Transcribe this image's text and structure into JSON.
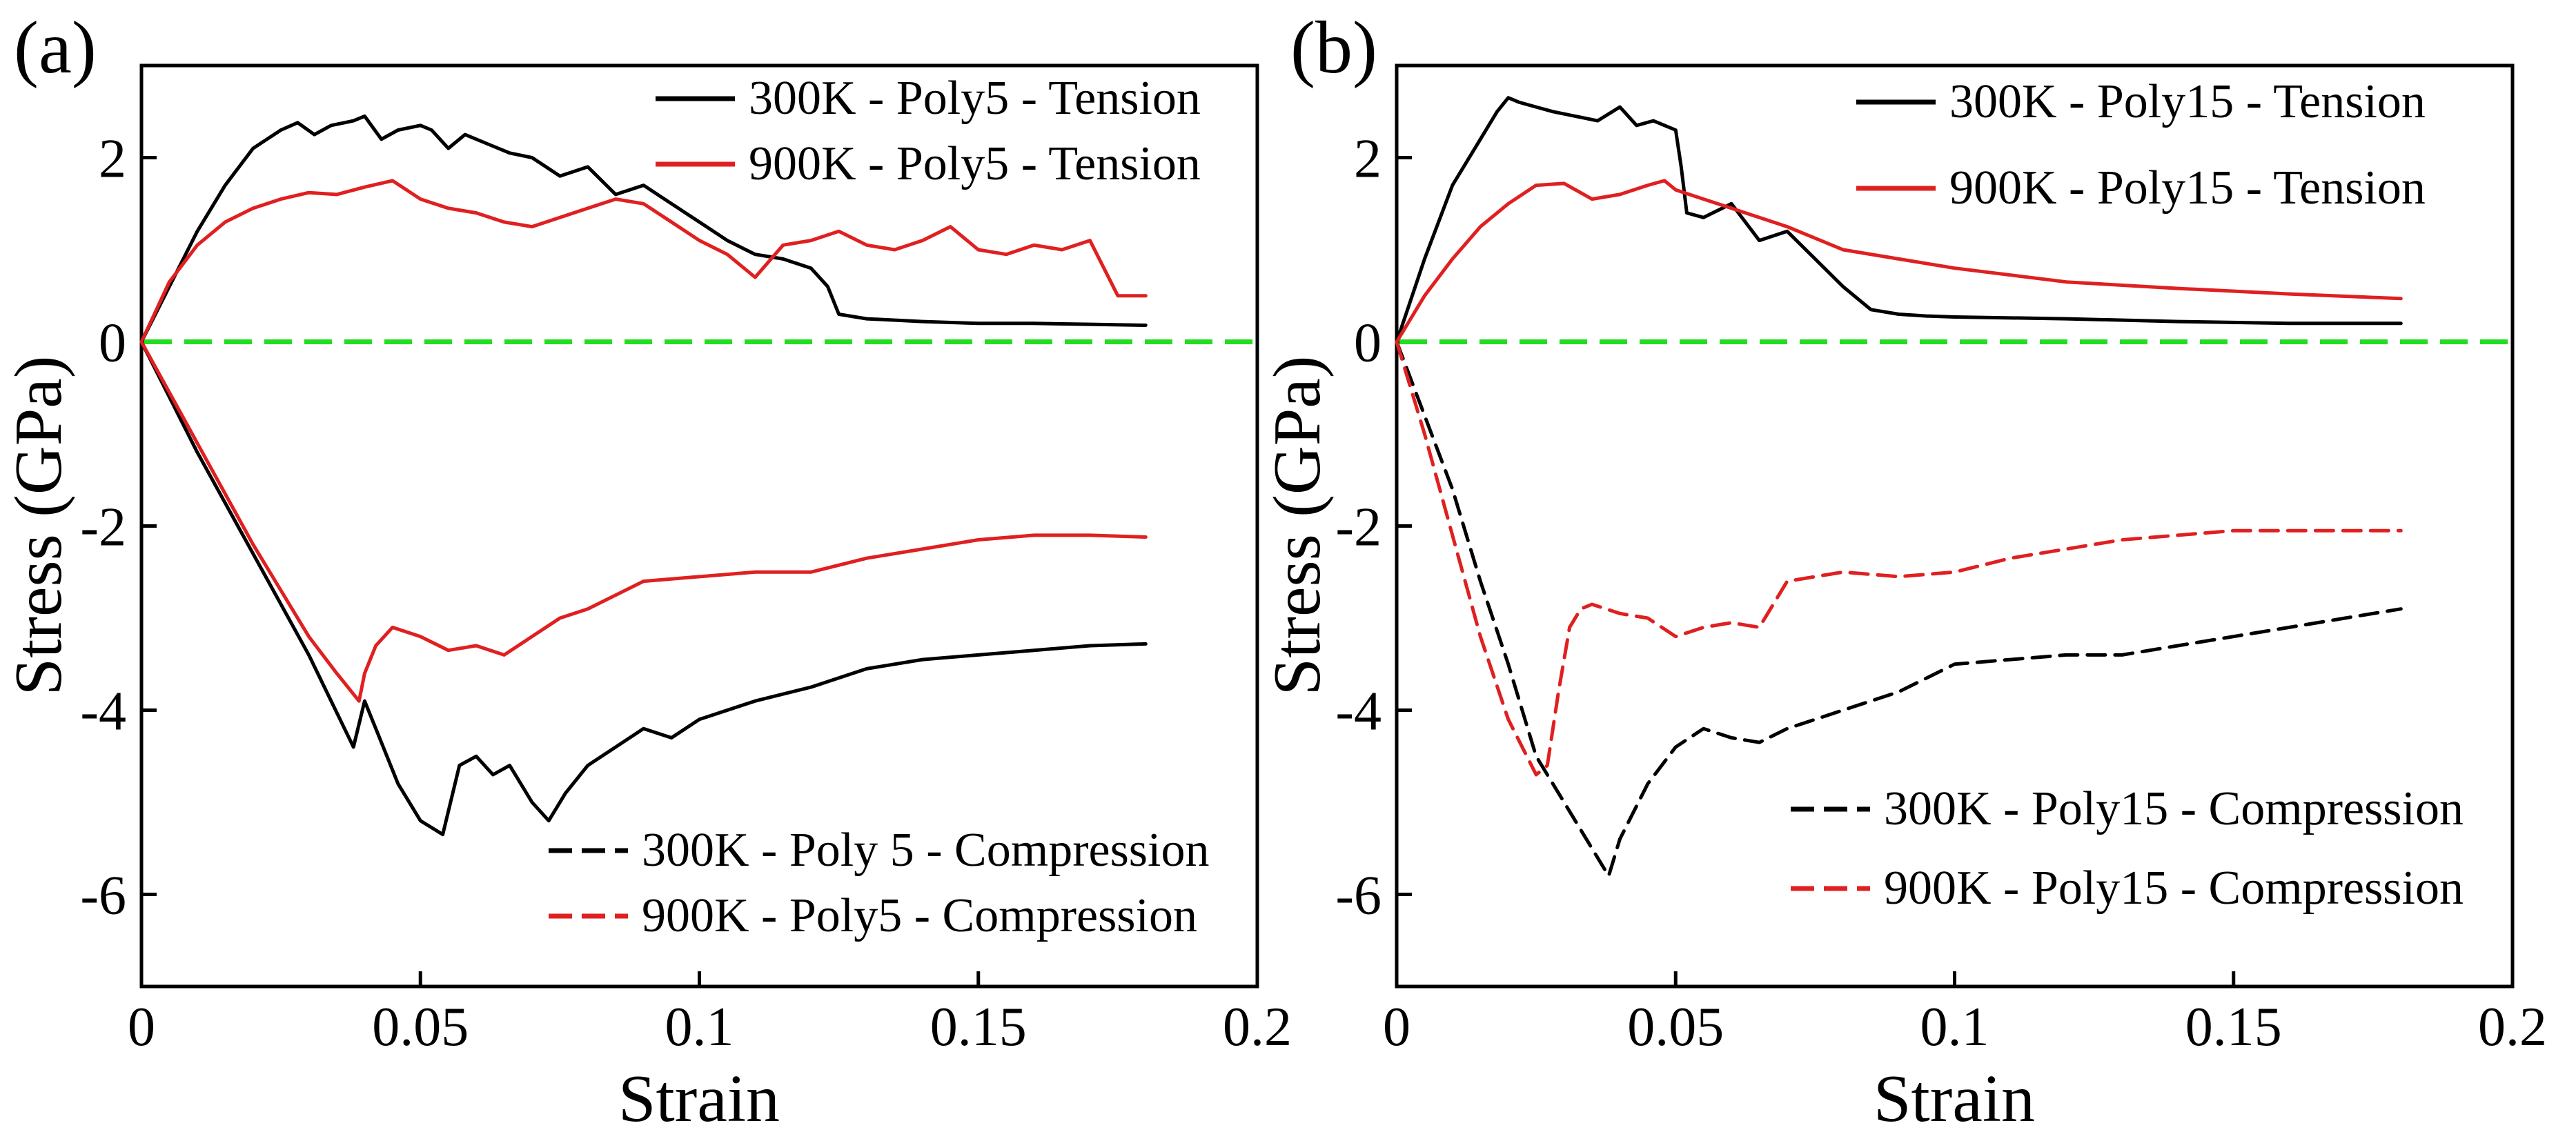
{
  "figure_title": "",
  "chart_data": [
    {
      "panel": "(a)",
      "type": "line",
      "title": "",
      "xlabel": "Strain",
      "ylabel": "Stress (GPa)",
      "xlim": [
        0,
        0.2
      ],
      "ylim": [
        -7,
        3
      ],
      "xticks": [
        0,
        0.05,
        0.1,
        0.15,
        0.2
      ],
      "xtick_labels": [
        "0",
        "0.05",
        "0.1",
        "0.15",
        "0.2"
      ],
      "yticks": [
        2,
        0,
        -2,
        -4,
        -6
      ],
      "ytick_labels": [
        "2",
        "0",
        "-2",
        "-4",
        "-6"
      ],
      "grid": false,
      "reference_line": {
        "y": 0,
        "style": "dashed",
        "color": "#22dd22"
      },
      "legends": [
        {
          "placement": "top-right",
          "items": [
            0,
            1
          ]
        },
        {
          "placement": "bottom-right",
          "items": [
            2,
            3
          ]
        }
      ],
      "series": [
        {
          "name": "300K - Poly5 - Tension",
          "color": "#000000",
          "style": "solid",
          "x": [
            0,
            0.005,
            0.01,
            0.015,
            0.02,
            0.025,
            0.028,
            0.031,
            0.034,
            0.038,
            0.04,
            0.043,
            0.046,
            0.05,
            0.052,
            0.055,
            0.058,
            0.062,
            0.066,
            0.07,
            0.075,
            0.08,
            0.085,
            0.09,
            0.095,
            0.1,
            0.105,
            0.11,
            0.115,
            0.12,
            0.123,
            0.125,
            0.13,
            0.14,
            0.15,
            0.16,
            0.17,
            0.18
          ],
          "y": [
            0,
            0.6,
            1.2,
            1.7,
            2.1,
            2.3,
            2.38,
            2.25,
            2.35,
            2.4,
            2.45,
            2.2,
            2.3,
            2.35,
            2.3,
            2.1,
            2.25,
            2.15,
            2.05,
            2.0,
            1.8,
            1.9,
            1.6,
            1.7,
            1.5,
            1.3,
            1.1,
            0.95,
            0.9,
            0.8,
            0.6,
            0.3,
            0.25,
            0.22,
            0.2,
            0.2,
            0.19,
            0.18
          ]
        },
        {
          "name": "900K - Poly5 - Tension",
          "color": "#e02020",
          "style": "solid",
          "x": [
            0,
            0.005,
            0.01,
            0.015,
            0.02,
            0.025,
            0.03,
            0.035,
            0.04,
            0.045,
            0.05,
            0.055,
            0.06,
            0.065,
            0.07,
            0.075,
            0.08,
            0.085,
            0.09,
            0.095,
            0.1,
            0.105,
            0.11,
            0.115,
            0.12,
            0.125,
            0.13,
            0.135,
            0.14,
            0.145,
            0.15,
            0.155,
            0.16,
            0.165,
            0.17,
            0.175,
            0.18
          ],
          "y": [
            0,
            0.65,
            1.05,
            1.3,
            1.45,
            1.55,
            1.62,
            1.6,
            1.68,
            1.75,
            1.55,
            1.45,
            1.4,
            1.3,
            1.25,
            1.35,
            1.45,
            1.55,
            1.5,
            1.3,
            1.1,
            0.95,
            0.7,
            1.05,
            1.1,
            1.2,
            1.05,
            1.0,
            1.1,
            1.25,
            1.0,
            0.95,
            1.05,
            1.0,
            1.1,
            0.5,
            0.5
          ]
        },
        {
          "name": "300K - Poly 5 - Compression",
          "color": "#000000",
          "style": "solid",
          "x": [
            0,
            0.01,
            0.02,
            0.03,
            0.038,
            0.04,
            0.042,
            0.046,
            0.05,
            0.054,
            0.057,
            0.06,
            0.063,
            0.066,
            0.07,
            0.073,
            0.076,
            0.08,
            0.085,
            0.09,
            0.095,
            0.1,
            0.11,
            0.12,
            0.13,
            0.14,
            0.15,
            0.16,
            0.17,
            0.18
          ],
          "y": [
            0,
            -1.2,
            -2.3,
            -3.4,
            -4.4,
            -3.9,
            -4.2,
            -4.8,
            -5.2,
            -5.35,
            -4.6,
            -4.5,
            -4.7,
            -4.6,
            -5.0,
            -5.2,
            -4.9,
            -4.6,
            -4.4,
            -4.2,
            -4.3,
            -4.1,
            -3.9,
            -3.75,
            -3.55,
            -3.45,
            -3.4,
            -3.35,
            -3.3,
            -3.28
          ]
        },
        {
          "name": "900K - Poly5 - Compression",
          "color": "#e02020",
          "style": "solid",
          "x": [
            0,
            0.01,
            0.02,
            0.03,
            0.035,
            0.039,
            0.04,
            0.042,
            0.045,
            0.05,
            0.055,
            0.06,
            0.065,
            0.07,
            0.075,
            0.08,
            0.09,
            0.1,
            0.11,
            0.12,
            0.13,
            0.14,
            0.15,
            0.16,
            0.17,
            0.18
          ],
          "y": [
            0,
            -1.1,
            -2.2,
            -3.2,
            -3.6,
            -3.9,
            -3.6,
            -3.3,
            -3.1,
            -3.2,
            -3.35,
            -3.3,
            -3.4,
            -3.2,
            -3.0,
            -2.9,
            -2.6,
            -2.55,
            -2.5,
            -2.5,
            -2.35,
            -2.25,
            -2.15,
            -2.1,
            -2.1,
            -2.12
          ]
        }
      ]
    },
    {
      "panel": "(b)",
      "type": "line",
      "title": "",
      "xlabel": "Strain",
      "ylabel": "Stress (GPa)",
      "xlim": [
        0,
        0.2
      ],
      "ylim": [
        -7,
        3
      ],
      "xticks": [
        0,
        0.05,
        0.1,
        0.15,
        0.2
      ],
      "xtick_labels": [
        "0",
        "0.05",
        "0.1",
        "0.15",
        "0.2"
      ],
      "yticks": [
        2,
        0,
        -2,
        -4,
        -6
      ],
      "ytick_labels": [
        "2",
        "0",
        "-2",
        "-4",
        "-6"
      ],
      "grid": false,
      "reference_line": {
        "y": 0,
        "style": "dashed",
        "color": "#22dd22"
      },
      "legends": [
        {
          "placement": "top-right",
          "items": [
            0,
            1
          ]
        },
        {
          "placement": "bottom-right",
          "items": [
            2,
            3
          ]
        }
      ],
      "series": [
        {
          "name": "300K - Poly15 - Tension",
          "color": "#000000",
          "style": "solid",
          "x": [
            0,
            0.005,
            0.01,
            0.015,
            0.018,
            0.02,
            0.022,
            0.025,
            0.028,
            0.032,
            0.036,
            0.04,
            0.043,
            0.046,
            0.05,
            0.051,
            0.052,
            0.055,
            0.06,
            0.065,
            0.07,
            0.075,
            0.08,
            0.085,
            0.09,
            0.095,
            0.1,
            0.12,
            0.14,
            0.16,
            0.18
          ],
          "y": [
            0,
            0.9,
            1.7,
            2.2,
            2.5,
            2.65,
            2.6,
            2.55,
            2.5,
            2.45,
            2.4,
            2.55,
            2.35,
            2.4,
            2.3,
            1.9,
            1.4,
            1.35,
            1.5,
            1.1,
            1.2,
            0.9,
            0.6,
            0.35,
            0.3,
            0.28,
            0.27,
            0.25,
            0.22,
            0.2,
            0.2
          ]
        },
        {
          "name": "900K - Poly15 - Tension",
          "color": "#e02020",
          "style": "solid",
          "x": [
            0,
            0.005,
            0.01,
            0.015,
            0.02,
            0.025,
            0.03,
            0.035,
            0.04,
            0.045,
            0.048,
            0.05,
            0.055,
            0.06,
            0.065,
            0.07,
            0.08,
            0.09,
            0.1,
            0.12,
            0.14,
            0.16,
            0.18
          ],
          "y": [
            0,
            0.5,
            0.9,
            1.25,
            1.5,
            1.7,
            1.72,
            1.55,
            1.6,
            1.7,
            1.75,
            1.65,
            1.55,
            1.45,
            1.35,
            1.25,
            1.0,
            0.9,
            0.8,
            0.65,
            0.58,
            0.52,
            0.47
          ]
        },
        {
          "name": "300K - Poly15 - Compression",
          "color": "#000000",
          "style": "dashed",
          "x": [
            0,
            0.005,
            0.01,
            0.015,
            0.02,
            0.025,
            0.03,
            0.035,
            0.038,
            0.04,
            0.045,
            0.05,
            0.055,
            0.06,
            0.065,
            0.07,
            0.08,
            0.09,
            0.1,
            0.11,
            0.12,
            0.13,
            0.14,
            0.15,
            0.16,
            0.17,
            0.18
          ],
          "y": [
            0,
            -0.8,
            -1.6,
            -2.6,
            -3.5,
            -4.5,
            -5.0,
            -5.5,
            -5.8,
            -5.4,
            -4.8,
            -4.4,
            -4.2,
            -4.3,
            -4.35,
            -4.2,
            -4.0,
            -3.8,
            -3.5,
            -3.45,
            -3.4,
            -3.4,
            -3.3,
            -3.2,
            -3.1,
            -3.0,
            -2.9
          ]
        },
        {
          "name": "900K - Poly15 - Compression",
          "color": "#e02020",
          "style": "dashed",
          "x": [
            0,
            0.005,
            0.01,
            0.015,
            0.02,
            0.025,
            0.027,
            0.029,
            0.031,
            0.033,
            0.035,
            0.04,
            0.045,
            0.05,
            0.055,
            0.06,
            0.065,
            0.07,
            0.08,
            0.09,
            0.1,
            0.11,
            0.12,
            0.13,
            0.14,
            0.15,
            0.16,
            0.17,
            0.18
          ],
          "y": [
            0,
            -1.0,
            -2.1,
            -3.2,
            -4.1,
            -4.7,
            -4.6,
            -3.8,
            -3.1,
            -2.9,
            -2.85,
            -2.95,
            -3.0,
            -3.2,
            -3.1,
            -3.05,
            -3.1,
            -2.6,
            -2.5,
            -2.55,
            -2.5,
            -2.35,
            -2.25,
            -2.15,
            -2.1,
            -2.05,
            -2.05,
            -2.05,
            -2.05
          ]
        }
      ]
    }
  ]
}
